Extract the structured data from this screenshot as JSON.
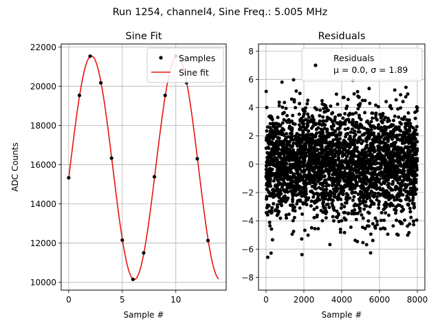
{
  "suptitle": "Run 1254, channel4, Sine Freq.: 5.005 MHz",
  "chart_data": [
    {
      "type": "line",
      "title": "Sine Fit",
      "xlabel": "Sample #",
      "ylabel": "ADC Counts",
      "xlim": [
        -0.7,
        14.7
      ],
      "ylim": [
        9600,
        22150
      ],
      "xticks": [
        0,
        5,
        10
      ],
      "yticks": [
        10000,
        12000,
        14000,
        16000,
        18000,
        20000,
        22000
      ],
      "grid": true,
      "legend_position": "top-right",
      "legend": [
        "Samples",
        "Sine fit"
      ],
      "samples": {
        "name": "Samples",
        "x": [
          0,
          1,
          2,
          3,
          4,
          5,
          6,
          7,
          8,
          9,
          10,
          11,
          12,
          13
        ],
        "y": [
          15330,
          19530,
          21530,
          20170,
          16330,
          12150,
          10150,
          11500,
          15380,
          19530,
          21540,
          20180,
          16300,
          12130
        ],
        "color": "#000000"
      },
      "fit": {
        "name": "Sine fit",
        "offset": 15840,
        "amplitude": 5700,
        "period": 8.0,
        "phase": -0.0963,
        "x_range": [
          0,
          14
        ],
        "color": "#e8120c"
      }
    },
    {
      "type": "scatter",
      "title": "Residuals",
      "xlabel": "Sample #",
      "ylabel": "",
      "xlim": [
        -400,
        8400
      ],
      "ylim": [
        -8.9,
        8.5
      ],
      "xticks": [
        0,
        2000,
        4000,
        6000,
        8000
      ],
      "yticks": [
        -8,
        -6,
        -4,
        -2,
        0,
        2,
        4,
        6,
        8
      ],
      "grid": true,
      "legend_position": "top-right",
      "legend": [
        "Residuals",
        "μ = 0.0, σ = 1.89"
      ],
      "series": {
        "name": "Residuals",
        "n_points": 8000,
        "mean": 0.0,
        "std": 1.89,
        "x_range": [
          0,
          8000
        ],
        "color": "#000000"
      }
    }
  ]
}
